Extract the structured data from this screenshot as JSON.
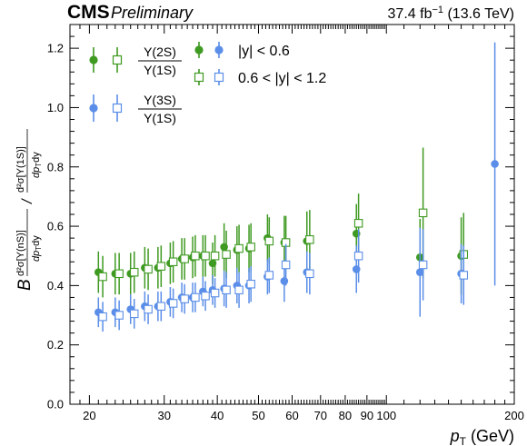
{
  "header": {
    "experiment": "CMS",
    "status": "Preliminary",
    "luminosity": "37.4 fb",
    "lumi_exponent": "−1",
    "energy": "(13.6 TeV)"
  },
  "chart_data": {
    "type": "scatter",
    "x_scale": "log",
    "xlim": [
      18,
      200
    ],
    "ylim": [
      0.0,
      1.28
    ],
    "xlabel_symbol": "p",
    "xlabel_subscript": "T",
    "xlabel_unit": "(GeV)",
    "ylabel": {
      "prefix": "B",
      "numerator_left": "d²σ[Υ(nS)]",
      "denominator_left": "dp",
      "denominator_left_sub": "T",
      "denominator_left_tail": "dy",
      "separator": "/",
      "numerator_right": "d²σ[Υ(1S)]",
      "denominator_right": "dp",
      "denominator_right_sub": "T",
      "denominator_right_tail": "dy"
    },
    "x_ticks": [
      {
        "value": 20,
        "label": "20"
      },
      {
        "value": 30,
        "label": "30"
      },
      {
        "value": 40,
        "label": "40"
      },
      {
        "value": 50,
        "label": "50"
      },
      {
        "value": 60,
        "label": "60"
      },
      {
        "value": 70,
        "label": "70"
      },
      {
        "value": 80,
        "label": "80"
      },
      {
        "value": 90,
        "label": "90"
      },
      {
        "value": 100,
        "label": "100"
      },
      {
        "value": 200,
        "label": "200"
      }
    ],
    "y_ticks": [
      {
        "value": 0.0,
        "label": "0.0"
      },
      {
        "value": 0.2,
        "label": "0.2"
      },
      {
        "value": 0.4,
        "label": "0.4"
      },
      {
        "value": 0.6,
        "label": "0.6"
      },
      {
        "value": 0.8,
        "label": "0.8"
      },
      {
        "value": 1.0,
        "label": "1.0"
      },
      {
        "value": 1.2,
        "label": "1.2"
      }
    ],
    "legend": {
      "ratio_2s_num": "Υ(2S)",
      "ratio_2s_den": "Υ(1S)",
      "ratio_3s_num": "Υ(3S)",
      "ratio_3s_den": "Υ(1S)",
      "rap_low": "|y| < 0.6",
      "rap_high": "0.6 < |y| < 1.2"
    },
    "colors": {
      "green": "#3f9a22",
      "blue": "#5b8ee8"
    },
    "series": [
      {
        "state": "2S",
        "rapidity": "low",
        "marker": "filled",
        "color": "#3f9a22",
        "points": [
          {
            "x": 21.0,
            "y": 0.445,
            "err": 0.07
          },
          {
            "x": 23.0,
            "y": 0.44,
            "err": 0.07
          },
          {
            "x": 25.0,
            "y": 0.44,
            "err": 0.07
          },
          {
            "x": 27.0,
            "y": 0.46,
            "err": 0.07
          },
          {
            "x": 29.0,
            "y": 0.46,
            "err": 0.07
          },
          {
            "x": 31.0,
            "y": 0.475,
            "err": 0.07
          },
          {
            "x": 33.0,
            "y": 0.49,
            "err": 0.07
          },
          {
            "x": 35.0,
            "y": 0.495,
            "err": 0.07
          },
          {
            "x": 37.0,
            "y": 0.5,
            "err": 0.07
          },
          {
            "x": 39.0,
            "y": 0.475,
            "err": 0.07
          },
          {
            "x": 41.5,
            "y": 0.53,
            "err": 0.08
          },
          {
            "x": 44.5,
            "y": 0.52,
            "err": 0.08
          },
          {
            "x": 47.5,
            "y": 0.525,
            "err": 0.08
          },
          {
            "x": 52.5,
            "y": 0.56,
            "err": 0.08
          },
          {
            "x": 57.5,
            "y": 0.545,
            "err": 0.09
          },
          {
            "x": 65.0,
            "y": 0.55,
            "err": 0.1
          },
          {
            "x": 85.0,
            "y": 0.575,
            "err": 0.1
          },
          {
            "x": 120.0,
            "y": 0.495,
            "err": 0.13
          },
          {
            "x": 150.0,
            "y": 0.5,
            "err": 0.13
          }
        ]
      },
      {
        "state": "2S",
        "rapidity": "high",
        "marker": "open",
        "color": "#3f9a22",
        "points": [
          {
            "x": 21.5,
            "y": 0.43,
            "err": 0.07
          },
          {
            "x": 23.5,
            "y": 0.44,
            "err": 0.07
          },
          {
            "x": 25.5,
            "y": 0.445,
            "err": 0.07
          },
          {
            "x": 27.5,
            "y": 0.455,
            "err": 0.07
          },
          {
            "x": 29.5,
            "y": 0.465,
            "err": 0.07
          },
          {
            "x": 31.5,
            "y": 0.48,
            "err": 0.07
          },
          {
            "x": 33.5,
            "y": 0.49,
            "err": 0.07
          },
          {
            "x": 35.5,
            "y": 0.5,
            "err": 0.07
          },
          {
            "x": 37.5,
            "y": 0.5,
            "err": 0.07
          },
          {
            "x": 39.5,
            "y": 0.5,
            "err": 0.07
          },
          {
            "x": 42.0,
            "y": 0.505,
            "err": 0.08
          },
          {
            "x": 45.0,
            "y": 0.525,
            "err": 0.08
          },
          {
            "x": 48.0,
            "y": 0.53,
            "err": 0.08
          },
          {
            "x": 53.0,
            "y": 0.55,
            "err": 0.08
          },
          {
            "x": 58.0,
            "y": 0.545,
            "err": 0.09
          },
          {
            "x": 66.0,
            "y": 0.555,
            "err": 0.1
          },
          {
            "x": 86.0,
            "y": 0.61,
            "err": 0.1
          },
          {
            "x": 122.0,
            "y": 0.645,
            "err": 0.22
          },
          {
            "x": 152.0,
            "y": 0.505,
            "err": 0.14
          }
        ]
      },
      {
        "state": "3S",
        "rapidity": "low",
        "marker": "filled",
        "color": "#5b8ee8",
        "points": [
          {
            "x": 21.0,
            "y": 0.31,
            "err": 0.05
          },
          {
            "x": 23.0,
            "y": 0.31,
            "err": 0.05
          },
          {
            "x": 25.0,
            "y": 0.32,
            "err": 0.05
          },
          {
            "x": 27.0,
            "y": 0.33,
            "err": 0.05
          },
          {
            "x": 29.0,
            "y": 0.33,
            "err": 0.05
          },
          {
            "x": 31.0,
            "y": 0.345,
            "err": 0.05
          },
          {
            "x": 33.0,
            "y": 0.36,
            "err": 0.05
          },
          {
            "x": 35.0,
            "y": 0.36,
            "err": 0.05
          },
          {
            "x": 37.0,
            "y": 0.38,
            "err": 0.05
          },
          {
            "x": 39.0,
            "y": 0.385,
            "err": 0.05
          },
          {
            "x": 41.5,
            "y": 0.39,
            "err": 0.06
          },
          {
            "x": 44.5,
            "y": 0.4,
            "err": 0.06
          },
          {
            "x": 47.5,
            "y": 0.4,
            "err": 0.06
          },
          {
            "x": 52.5,
            "y": 0.43,
            "err": 0.06
          },
          {
            "x": 57.5,
            "y": 0.415,
            "err": 0.07
          },
          {
            "x": 65.0,
            "y": 0.445,
            "err": 0.07
          },
          {
            "x": 85.0,
            "y": 0.455,
            "err": 0.08
          },
          {
            "x": 120.0,
            "y": 0.445,
            "err": 0.15
          },
          {
            "x": 150.0,
            "y": 0.44,
            "err": 0.1
          },
          {
            "x": 180.0,
            "y": 0.81,
            "err": 0.41
          }
        ]
      },
      {
        "state": "3S",
        "rapidity": "high",
        "marker": "open",
        "color": "#5b8ee8",
        "points": [
          {
            "x": 21.5,
            "y": 0.295,
            "err": 0.05
          },
          {
            "x": 23.5,
            "y": 0.3,
            "err": 0.05
          },
          {
            "x": 25.5,
            "y": 0.305,
            "err": 0.05
          },
          {
            "x": 27.5,
            "y": 0.32,
            "err": 0.05
          },
          {
            "x": 29.5,
            "y": 0.33,
            "err": 0.05
          },
          {
            "x": 31.5,
            "y": 0.34,
            "err": 0.05
          },
          {
            "x": 33.5,
            "y": 0.355,
            "err": 0.05
          },
          {
            "x": 35.5,
            "y": 0.36,
            "err": 0.05
          },
          {
            "x": 37.5,
            "y": 0.365,
            "err": 0.05
          },
          {
            "x": 39.5,
            "y": 0.375,
            "err": 0.05
          },
          {
            "x": 42.0,
            "y": 0.385,
            "err": 0.06
          },
          {
            "x": 45.0,
            "y": 0.385,
            "err": 0.06
          },
          {
            "x": 48.0,
            "y": 0.405,
            "err": 0.06
          },
          {
            "x": 53.0,
            "y": 0.435,
            "err": 0.06
          },
          {
            "x": 58.0,
            "y": 0.47,
            "err": 0.07
          },
          {
            "x": 66.0,
            "y": 0.44,
            "err": 0.07
          },
          {
            "x": 86.0,
            "y": 0.5,
            "err": 0.09
          },
          {
            "x": 122.0,
            "y": 0.47,
            "err": 0.12
          },
          {
            "x": 152.0,
            "y": 0.435,
            "err": 0.1
          }
        ]
      }
    ]
  }
}
